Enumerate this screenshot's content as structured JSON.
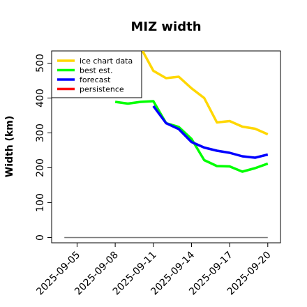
{
  "chart_data": {
    "type": "line",
    "title": "MIZ width",
    "xlabel": "",
    "ylabel": "Width (km)",
    "ylim": [
      -15,
      535
    ],
    "xlim": [
      "2025-09-03",
      "2025-09-21"
    ],
    "yticks": [
      0,
      100,
      200,
      300,
      400,
      500
    ],
    "xticks": [
      "2025-09-05",
      "2025-09-08",
      "2025-09-11",
      "2025-09-14",
      "2025-09-17",
      "2025-09-20"
    ],
    "highlight_tick": "2025-09-11",
    "highlight_color": "#228B22",
    "legend_position": "top-left",
    "grid": false,
    "series": [
      {
        "name": "ice chart data",
        "color": "#FFD700",
        "x": [
          "2025-09-10",
          "2025-09-11",
          "2025-09-12",
          "2025-09-13",
          "2025-09-14",
          "2025-09-15",
          "2025-09-16",
          "2025-09-17",
          "2025-09-18",
          "2025-09-19",
          "2025-09-20"
        ],
        "y": [
          545,
          478,
          457,
          461,
          428,
          400,
          330,
          334,
          318,
          312,
          296
        ]
      },
      {
        "name": "best est.",
        "color": "#00FF00",
        "x": [
          "2025-09-08",
          "2025-09-09",
          "2025-09-10",
          "2025-09-11",
          "2025-09-12",
          "2025-09-13",
          "2025-09-14",
          "2025-09-15",
          "2025-09-16",
          "2025-09-17",
          "2025-09-18",
          "2025-09-19",
          "2025-09-20"
        ],
        "y": [
          389,
          384,
          389,
          391,
          328,
          317,
          283,
          222,
          205,
          204,
          189,
          199,
          212
        ]
      },
      {
        "name": "forecast",
        "color": "#0000FF",
        "x": [
          "2025-09-11",
          "2025-09-12",
          "2025-09-13",
          "2025-09-14",
          "2025-09-15",
          "2025-09-16",
          "2025-09-17",
          "2025-09-18",
          "2025-09-19",
          "2025-09-20"
        ],
        "y": [
          377,
          328,
          311,
          274,
          258,
          249,
          243,
          233,
          229,
          238
        ]
      },
      {
        "name": "persistence",
        "color": "#FF0000",
        "x": [],
        "y": []
      }
    ],
    "reference_line": {
      "color": "#777777",
      "x": [
        "2025-09-04",
        "2025-09-20"
      ],
      "y": [
        0,
        0
      ]
    }
  }
}
